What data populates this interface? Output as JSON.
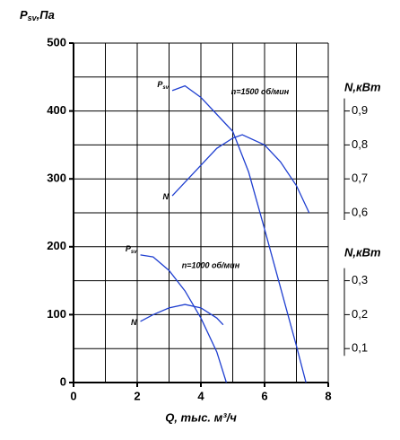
{
  "chart_data": {
    "type": "line",
    "ylabel": {
      "text": "P",
      "sub": "sv",
      "rest": ",Па"
    },
    "xlabel": "Q, тыс. м³/ч",
    "y2label": "N,кВт",
    "y3label": "N,кВт",
    "xlim": [
      0,
      8
    ],
    "xticks": [
      0,
      2,
      4,
      6,
      8
    ],
    "xgrid": [
      0,
      1,
      2,
      3,
      4,
      5,
      6,
      7,
      8
    ],
    "ylim": [
      0,
      500
    ],
    "yticks": [
      0,
      100,
      200,
      300,
      400,
      500
    ],
    "ygrid": [
      0,
      50,
      100,
      150,
      200,
      250,
      300,
      350,
      400,
      450,
      500
    ],
    "y2lim": [
      0.1,
      1.1
    ],
    "y2ticks": [
      {
        "value": 0.9,
        "label": "0,9"
      },
      {
        "value": 0.8,
        "label": "0,8"
      },
      {
        "value": 0.7,
        "label": "0,7"
      },
      {
        "value": 0.6,
        "label": "0,6"
      }
    ],
    "y3lim": [
      0,
      1.0
    ],
    "y3ticks": [
      {
        "value": 0.3,
        "label": "0,3"
      },
      {
        "value": 0.2,
        "label": "0,2"
      },
      {
        "value": 0.1,
        "label": "0,1"
      }
    ],
    "grid": true,
    "annotations": [
      "n=1500 об/мин",
      "n=1000 об/мин"
    ],
    "series": [
      {
        "name": "P",
        "name_sub": "sv",
        "color": "#1f3fd0",
        "axis": "y",
        "x": [
          3.1,
          3.5,
          4,
          4.5,
          5,
          5.5,
          6,
          6.5,
          7,
          7.3
        ],
        "values": [
          430,
          437,
          420,
          395,
          370,
          310,
          226,
          140,
          54,
          0
        ]
      },
      {
        "name": "N",
        "color": "#1f3fd0",
        "axis": "y2",
        "x": [
          3.1,
          3.5,
          4,
          4.5,
          5,
          5.3,
          6,
          6.5,
          7,
          7.4
        ],
        "values": [
          0.65,
          0.69,
          0.74,
          0.79,
          0.82,
          0.83,
          0.8,
          0.75,
          0.68,
          0.6
        ]
      },
      {
        "name": "P",
        "name_sub": "sv",
        "color": "#1f3fd0",
        "axis": "y",
        "x": [
          2.1,
          2.5,
          3,
          3.5,
          4,
          4.5,
          4.8
        ],
        "values": [
          188,
          185,
          165,
          135,
          95,
          45,
          0
        ]
      },
      {
        "name": "N",
        "color": "#1f3fd0",
        "axis": "y3",
        "x": [
          2.1,
          2.5,
          3,
          3.5,
          4,
          4.5,
          4.7
        ],
        "values": [
          0.18,
          0.2,
          0.22,
          0.23,
          0.22,
          0.19,
          0.17
        ]
      }
    ]
  }
}
